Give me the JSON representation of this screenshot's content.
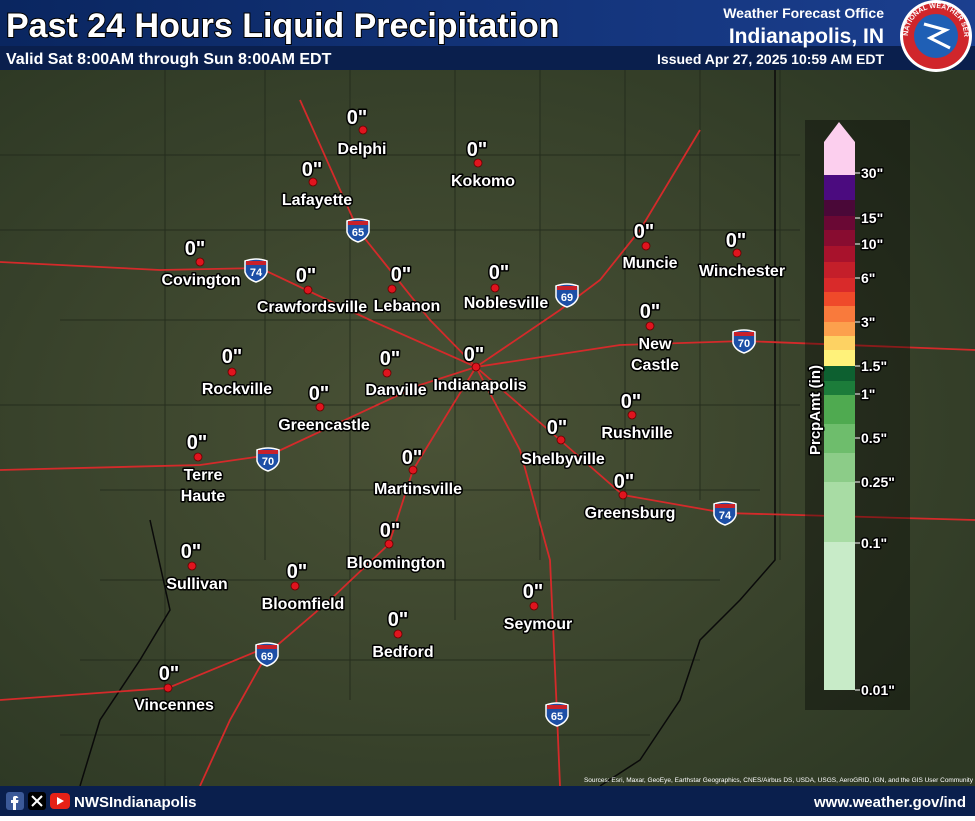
{
  "header": {
    "title": "Past 24 Hours Liquid Precipitation",
    "subtitle": "Valid Sat 8:00AM through Sun 8:00AM EDT",
    "office": "Weather Forecast Office",
    "city": "Indianapolis, IN",
    "issued": "Issued Apr 27, 2025 10:59 AM EDT",
    "logo_text": "NATIONAL WEATHER SERVICE"
  },
  "stations": [
    {
      "name": "Delphi",
      "amount": "0\""
    },
    {
      "name": "Lafayette",
      "amount": "0\""
    },
    {
      "name": "Kokomo",
      "amount": "0\""
    },
    {
      "name": "Covington",
      "amount": "0\""
    },
    {
      "name": "Crawfordsville",
      "amount": "0\""
    },
    {
      "name": "Lebanon",
      "amount": "0\""
    },
    {
      "name": "Noblesville",
      "amount": "0\""
    },
    {
      "name": "Muncie",
      "amount": "0\""
    },
    {
      "name": "Winchester",
      "amount": "0\""
    },
    {
      "name": "New Castle",
      "amount": "0\""
    },
    {
      "name": "Rockville",
      "amount": "0\""
    },
    {
      "name": "Danville",
      "amount": "0\""
    },
    {
      "name": "Indianapolis",
      "amount": "0\""
    },
    {
      "name": "Greencastle",
      "amount": "0\""
    },
    {
      "name": "Terre Haute",
      "amount": "0\""
    },
    {
      "name": "Rushville",
      "amount": "0\""
    },
    {
      "name": "Shelbyville",
      "amount": "0\""
    },
    {
      "name": "Martinsville",
      "amount": "0\""
    },
    {
      "name": "Greensburg",
      "amount": "0\""
    },
    {
      "name": "Sullivan",
      "amount": "0\""
    },
    {
      "name": "Bloomington",
      "amount": "0\""
    },
    {
      "name": "Bloomfield",
      "amount": "0\""
    },
    {
      "name": "Seymour",
      "amount": "0\""
    },
    {
      "name": "Bedford",
      "amount": "0\""
    },
    {
      "name": "Vincennes",
      "amount": "0\""
    }
  ],
  "interstates": [
    "65",
    "74",
    "69",
    "70",
    "70",
    "74",
    "69",
    "65"
  ],
  "legend": {
    "title": "PrcpAmt (in)",
    "labels": [
      "30\"",
      "15\"",
      "10\"",
      "6\"",
      "3\"",
      "1.5\"",
      "1\"",
      "0.5\"",
      "0.25\"",
      "0.1\"",
      "0.01\""
    ],
    "colors": [
      "#c8ebc8",
      "#a8dca4",
      "#8ccc88",
      "#6ebd6c",
      "#4faa50",
      "#1c7c3a",
      "#0d6030",
      "#fff27a",
      "#fdd263",
      "#fca04d",
      "#f97a3c",
      "#ef4a2a",
      "#d92a2a",
      "#c41f2a",
      "#a8122c",
      "#880c30",
      "#6a0834",
      "#4a0838",
      "#4b0b7f",
      "#fccfee"
    ]
  },
  "attribution": "Sources: Esri, Maxar, GeoEye, Earthstar Geographics, CNES/Airbus DS, USDA, USGS, AeroGRID, IGN, and the GIS User Community",
  "footer": {
    "social": "NWSIndianapolis",
    "url": "www.weather.gov/ind"
  }
}
